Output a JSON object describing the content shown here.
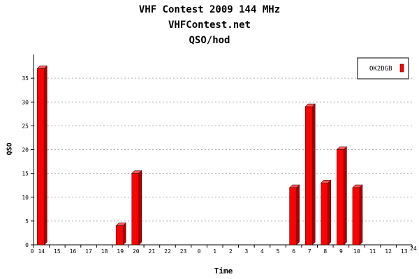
{
  "chart_data": {
    "type": "bar",
    "title": "VHF Contest 2009 144 MHz",
    "subtitle": "VHFContest.net",
    "subtitle2": "QSO/hod",
    "xlabel": "Time",
    "ylabel": "QSO",
    "categories": [
      "14",
      "15",
      "16",
      "17",
      "18",
      "19",
      "20",
      "21",
      "22",
      "23",
      "0",
      "1",
      "2",
      "3",
      "4",
      "5",
      "6",
      "7",
      "8",
      "9",
      "10",
      "11",
      "12",
      "13"
    ],
    "x_axis_end_labels": [
      "0",
      "24"
    ],
    "series": [
      {
        "name": "OK2DGB",
        "color": "#ff0000",
        "values": [
          37,
          0,
          0,
          0,
          0,
          4,
          15,
          0,
          0,
          0,
          0,
          0,
          0,
          0,
          0,
          0,
          12,
          29,
          13,
          20,
          12,
          0,
          0,
          0
        ]
      }
    ],
    "ylim": [
      0,
      40
    ],
    "yticks": [
      0,
      5,
      10,
      15,
      20,
      25,
      30,
      35
    ],
    "grid": true,
    "legend_position": "top-right"
  }
}
